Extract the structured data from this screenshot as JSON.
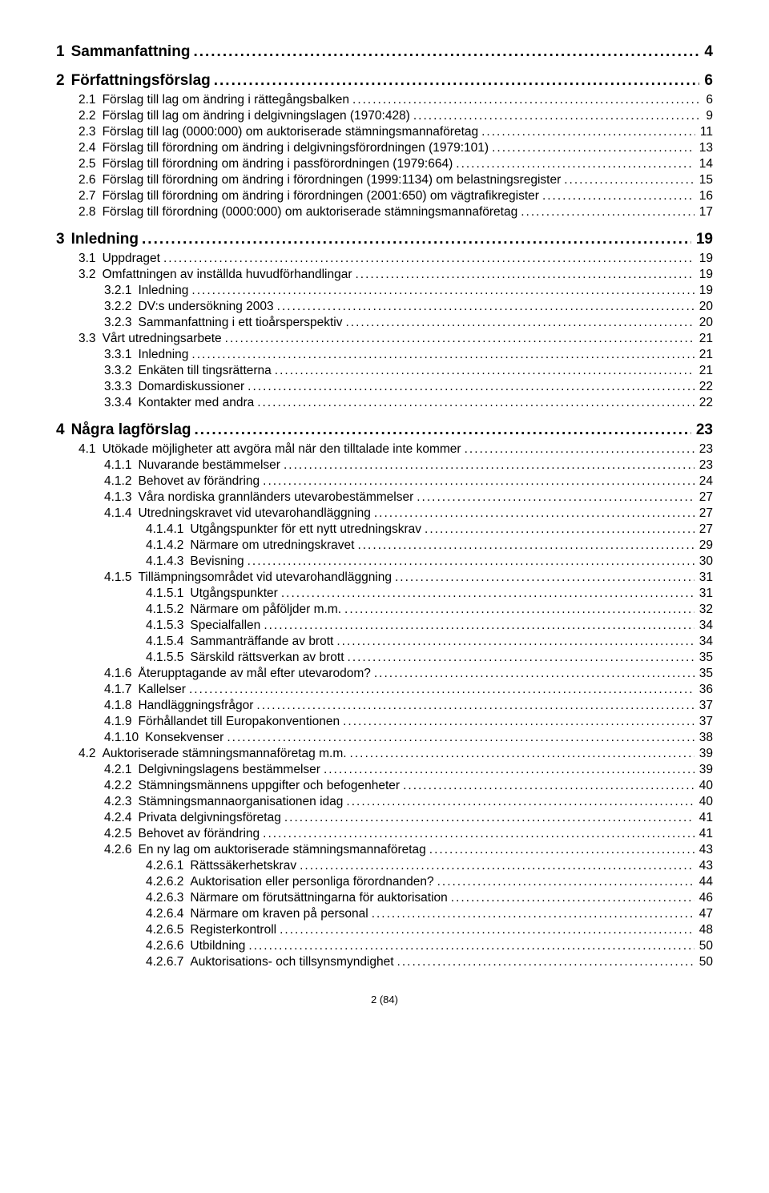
{
  "footer": "2 (84)",
  "entries": [
    {
      "level": 1,
      "num": "1",
      "title": "Sammanfattning",
      "page": "4"
    },
    {
      "level": 1,
      "num": "2",
      "title": "Författningsförslag",
      "page": "6"
    },
    {
      "level": 2,
      "num": "2.1",
      "title": "Förslag till lag om ändring i rättegångsbalken",
      "page": "6"
    },
    {
      "level": 2,
      "num": "2.2",
      "title": "Förslag till lag om ändring i delgivningslagen (1970:428)",
      "page": "9"
    },
    {
      "level": 2,
      "num": "2.3",
      "title": "Förslag till lag (0000:000) om auktoriserade stämningsmannaföretag",
      "page": "11"
    },
    {
      "level": 2,
      "num": "2.4",
      "title": "Förslag till förordning om ändring i delgivningsförordningen (1979:101)",
      "page": "13"
    },
    {
      "level": 2,
      "num": "2.5",
      "title": "Förslag till förordning om ändring i passförordningen (1979:664)",
      "page": "14"
    },
    {
      "level": 2,
      "num": "2.6",
      "title": "Förslag till förordning om ändring i förordningen (1999:1134) om belastningsregister",
      "page": "15"
    },
    {
      "level": 2,
      "num": "2.7",
      "title": "Förslag till förordning om ändring i förordningen (2001:650) om vägtrafikregister",
      "page": "16"
    },
    {
      "level": 2,
      "num": "2.8",
      "title": "Förslag till förordning (0000:000) om auktoriserade stämningsmannaföretag",
      "page": "17"
    },
    {
      "level": 1,
      "num": "3",
      "title": "Inledning",
      "page": "19"
    },
    {
      "level": 2,
      "num": "3.1",
      "title": "Uppdraget",
      "page": "19"
    },
    {
      "level": 2,
      "num": "3.2",
      "title": "Omfattningen av inställda huvudförhandlingar",
      "page": "19"
    },
    {
      "level": 3,
      "num": "3.2.1",
      "title": "Inledning",
      "page": "19"
    },
    {
      "level": 3,
      "num": "3.2.2",
      "title": "DV:s undersökning 2003",
      "page": "20"
    },
    {
      "level": 3,
      "num": "3.2.3",
      "title": "Sammanfattning i ett tioårsperspektiv",
      "page": "20"
    },
    {
      "level": 2,
      "num": "3.3",
      "title": "Vårt utredningsarbete",
      "page": "21"
    },
    {
      "level": 3,
      "num": "3.3.1",
      "title": "Inledning",
      "page": "21"
    },
    {
      "level": 3,
      "num": "3.3.2",
      "title": "Enkäten till tingsrätterna",
      "page": "21"
    },
    {
      "level": 3,
      "num": "3.3.3",
      "title": "Domardiskussioner",
      "page": "22"
    },
    {
      "level": 3,
      "num": "3.3.4",
      "title": "Kontakter med andra",
      "page": "22"
    },
    {
      "level": 1,
      "num": "4",
      "title": "Några lagförslag",
      "page": "23"
    },
    {
      "level": 2,
      "num": "4.1",
      "title": "Utökade möjligheter att avgöra mål när den tilltalade inte kommer",
      "page": "23"
    },
    {
      "level": 3,
      "num": "4.1.1",
      "title": "Nuvarande bestämmelser",
      "page": "23"
    },
    {
      "level": 3,
      "num": "4.1.2",
      "title": "Behovet av förändring",
      "page": "24"
    },
    {
      "level": 3,
      "num": "4.1.3",
      "title": "Våra nordiska grannländers utevarobestämmelser",
      "page": "27"
    },
    {
      "level": 3,
      "num": "4.1.4",
      "title": "Utredningskravet vid utevarohandläggning",
      "page": "27"
    },
    {
      "level": 4,
      "num": "4.1.4.1",
      "title": "Utgångspunkter för ett nytt utredningskrav",
      "page": "27"
    },
    {
      "level": 4,
      "num": "4.1.4.2",
      "title": "Närmare om utredningskravet",
      "page": "29"
    },
    {
      "level": 4,
      "num": "4.1.4.3",
      "title": "Bevisning",
      "page": "30"
    },
    {
      "level": 3,
      "num": "4.1.5",
      "title": "Tillämpningsområdet vid utevarohandläggning",
      "page": "31"
    },
    {
      "level": 4,
      "num": "4.1.5.1",
      "title": "Utgångspunkter",
      "page": "31"
    },
    {
      "level": 4,
      "num": "4.1.5.2",
      "title": "Närmare om påföljder m.m.",
      "page": "32"
    },
    {
      "level": 4,
      "num": "4.1.5.3",
      "title": "Specialfallen",
      "page": "34"
    },
    {
      "level": 4,
      "num": "4.1.5.4",
      "title": "Sammanträffande av brott",
      "page": "34"
    },
    {
      "level": 4,
      "num": "4.1.5.5",
      "title": "Särskild rättsverkan av brott",
      "page": "35"
    },
    {
      "level": 3,
      "num": "4.1.6",
      "title": "Återupptagande av mål efter utevarodom?",
      "page": "35"
    },
    {
      "level": 3,
      "num": "4.1.7",
      "title": "Kallelser",
      "page": "36"
    },
    {
      "level": 3,
      "num": "4.1.8",
      "title": "Handläggningsfrågor",
      "page": "37"
    },
    {
      "level": 3,
      "num": "4.1.9",
      "title": "Förhållandet till Europakonventionen",
      "page": "37"
    },
    {
      "level": 3,
      "num": "4.1.10",
      "title": "Konsekvenser",
      "page": "38"
    },
    {
      "level": 2,
      "num": "4.2",
      "title": "Auktoriserade stämningsmannaföretag m.m.",
      "page": "39"
    },
    {
      "level": 3,
      "num": "4.2.1",
      "title": "Delgivningslagens bestämmelser",
      "page": "39"
    },
    {
      "level": 3,
      "num": "4.2.2",
      "title": "Stämningsmännens uppgifter och befogenheter",
      "page": "40"
    },
    {
      "level": 3,
      "num": "4.2.3",
      "title": "Stämningsmannaorganisationen idag",
      "page": "40"
    },
    {
      "level": 3,
      "num": "4.2.4",
      "title": "Privata delgivningsföretag",
      "page": "41"
    },
    {
      "level": 3,
      "num": "4.2.5",
      "title": "Behovet av förändring",
      "page": "41"
    },
    {
      "level": 3,
      "num": "4.2.6",
      "title": "En ny lag om auktoriserade stämningsmannaföretag",
      "page": "43"
    },
    {
      "level": 4,
      "num": "4.2.6.1",
      "title": "Rättssäkerhetskrav",
      "page": "43"
    },
    {
      "level": 4,
      "num": "4.2.6.2",
      "title": "Auktorisation eller personliga förordnanden?",
      "page": "44"
    },
    {
      "level": 4,
      "num": "4.2.6.3",
      "title": "Närmare om förutsättningarna för auktorisation",
      "page": "46"
    },
    {
      "level": 4,
      "num": "4.2.6.4",
      "title": "Närmare om kraven på personal",
      "page": "47"
    },
    {
      "level": 4,
      "num": "4.2.6.5",
      "title": "Registerkontroll",
      "page": "48"
    },
    {
      "level": 4,
      "num": "4.2.6.6",
      "title": "Utbildning",
      "page": "50"
    },
    {
      "level": 4,
      "num": "4.2.6.7",
      "title": "Auktorisations- och tillsynsmyndighet",
      "page": "50"
    }
  ]
}
